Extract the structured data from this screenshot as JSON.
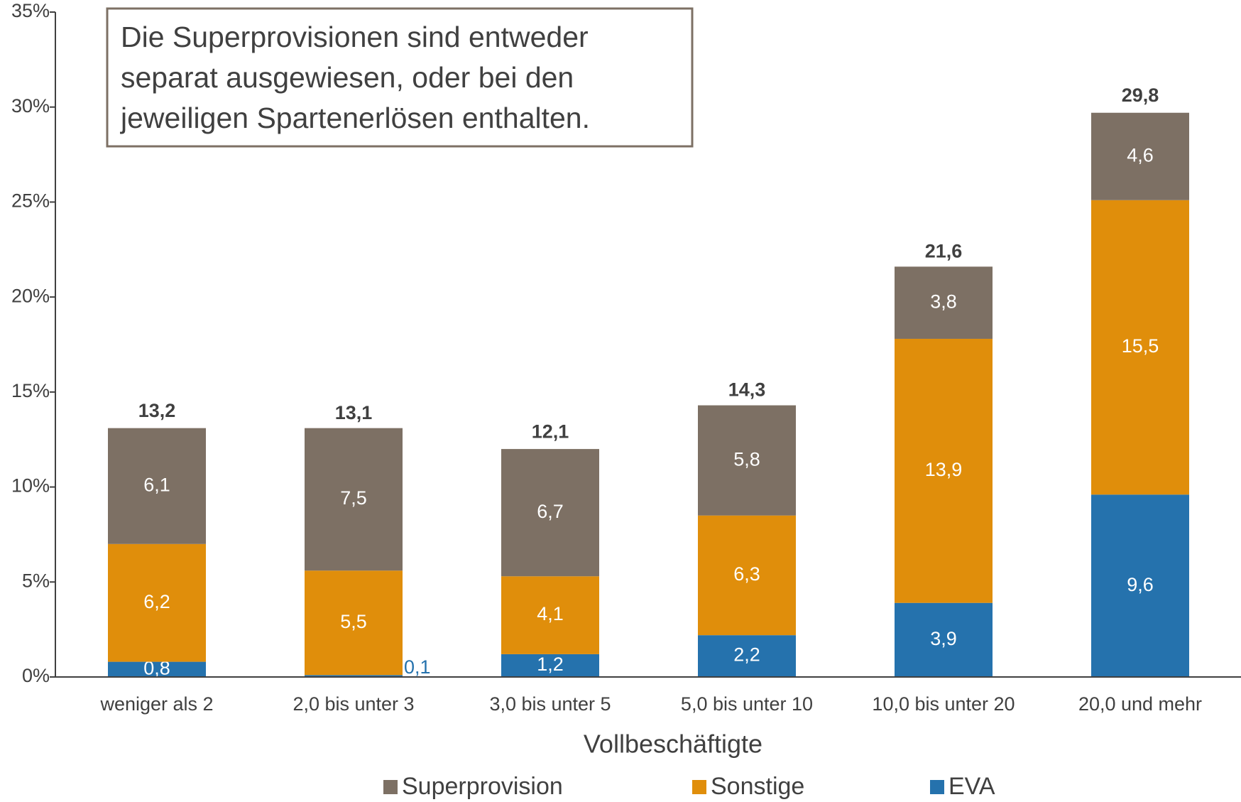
{
  "chart_data": {
    "type": "stacked_bar",
    "annotation": [
      "Die Superprovisionen sind entweder",
      "separat ausgewiesen, oder bei den",
      "jeweiligen Spartenerlösen enthalten."
    ],
    "xlabel": "Vollbeschäftigte",
    "categories": [
      "weniger als 2",
      "2,0 bis unter 3",
      "3,0 bis unter 5",
      "5,0 bis unter 10",
      "10,0 bis unter 20",
      "20,0 und mehr"
    ],
    "series": [
      {
        "name": "Superprovision",
        "color": "#7d7064",
        "values": [
          6.1,
          7.5,
          6.7,
          5.8,
          3.8,
          4.6
        ],
        "value_labels": [
          "6,1",
          "7,5",
          "6,7",
          "5,8",
          "3,8",
          "4,6"
        ]
      },
      {
        "name": "Sonstige",
        "color": "#e08e0b",
        "values": [
          6.2,
          5.5,
          4.1,
          6.3,
          13.9,
          15.5
        ],
        "value_labels": [
          "6,2",
          "5,5",
          "4,1",
          "6,3",
          "13,9",
          "15,5"
        ]
      },
      {
        "name": "EVA",
        "color": "#2572ad",
        "values": [
          0.8,
          0.1,
          1.2,
          2.2,
          3.9,
          9.6
        ],
        "value_labels": [
          "0,8",
          "0,1",
          "1,2",
          "2,2",
          "3,9",
          "9,6"
        ]
      }
    ],
    "totals": {
      "values": [
        13.2,
        13.1,
        12.1,
        14.3,
        21.6,
        29.8
      ],
      "value_labels": [
        "13,2",
        "13,1",
        "12,1",
        "14,3",
        "21,6",
        "29,8"
      ]
    },
    "ylim": [
      0,
      35
    ],
    "yticks": [
      {
        "value": 0,
        "label": "0%"
      },
      {
        "value": 5,
        "label": "5%"
      },
      {
        "value": 10,
        "label": "10%"
      },
      {
        "value": 15,
        "label": "15%"
      },
      {
        "value": 20,
        "label": "20%"
      },
      {
        "value": 25,
        "label": "25%"
      },
      {
        "value": 30,
        "label": "30%"
      },
      {
        "value": 35,
        "label": "35%"
      }
    ],
    "legend": "bottom"
  }
}
